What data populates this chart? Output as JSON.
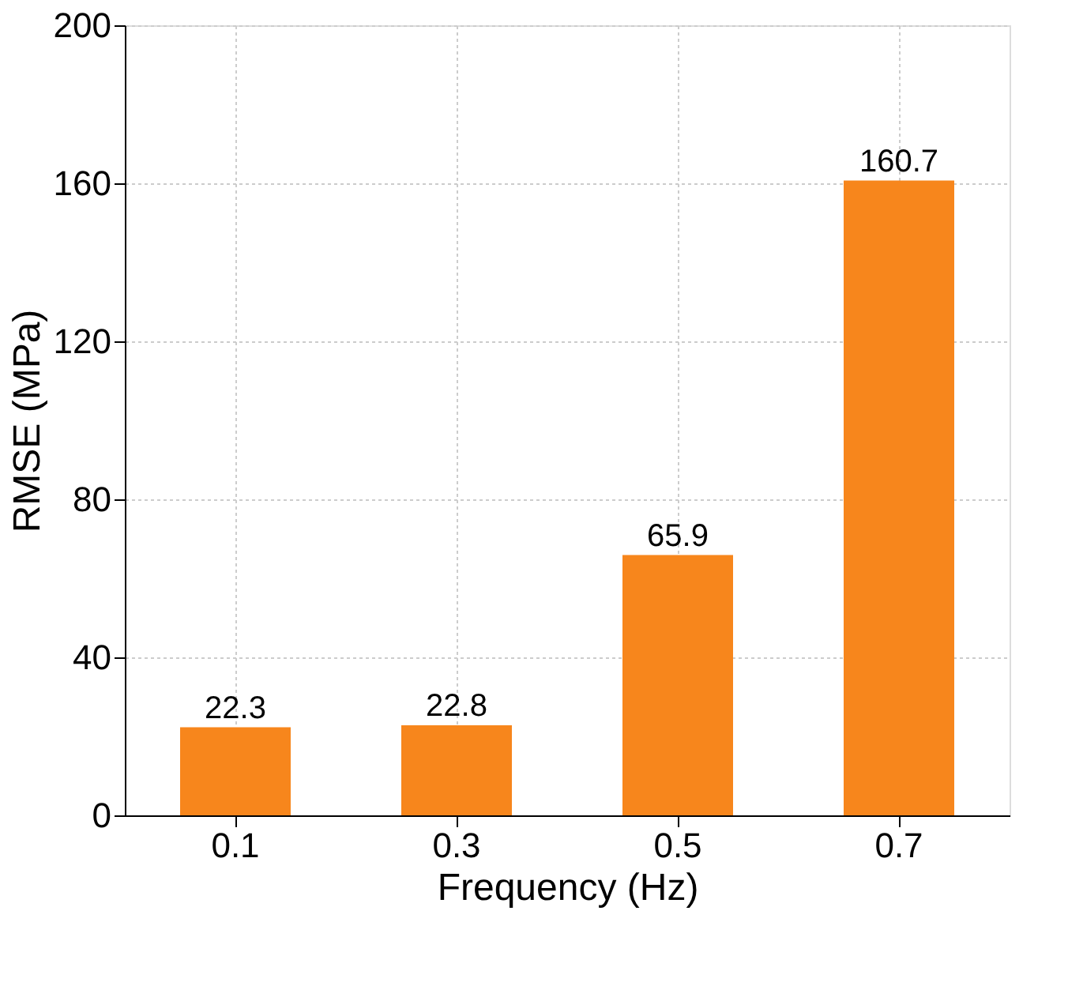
{
  "chart_data": {
    "type": "bar",
    "xlabel": "Frequency (Hz)",
    "ylabel": "RMSE (MPa)",
    "categories": [
      "0.1",
      "0.3",
      "0.5",
      "0.7"
    ],
    "values": [
      22.3,
      22.8,
      65.9,
      160.7
    ],
    "color": "#f7861c",
    "ylim": [
      0,
      200
    ],
    "yticks": [
      0,
      40,
      80,
      120,
      160,
      200
    ],
    "grid": true,
    "data_labels": true
  }
}
